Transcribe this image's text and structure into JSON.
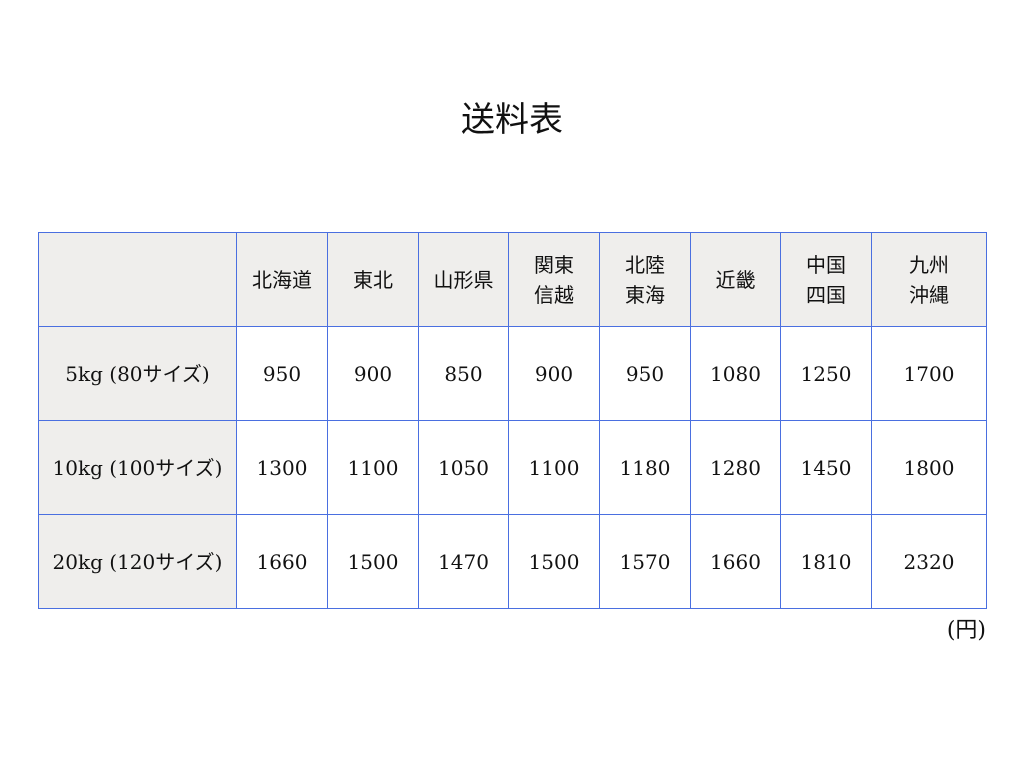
{
  "title": "送料表",
  "table": {
    "columns": [
      "",
      "北海道",
      "東北",
      "山形県",
      "関東\n信越",
      "北陸\n東海",
      "近畿",
      "中国\n四国",
      "九州\n沖縄"
    ],
    "rows": [
      {
        "label": "5kg (80サイズ)",
        "values": [
          "950",
          "900",
          "850",
          "900",
          "950",
          "1080",
          "1250",
          "1700"
        ]
      },
      {
        "label": "10kg (100サイズ)",
        "values": [
          "1300",
          "1100",
          "1050",
          "1100",
          "1180",
          "1280",
          "1450",
          "1800"
        ]
      },
      {
        "label": "20kg (120サイズ)",
        "values": [
          "1660",
          "1500",
          "1470",
          "1500",
          "1570",
          "1660",
          "1810",
          "2320"
        ]
      }
    ]
  },
  "unit": "(円)",
  "colors": {
    "border": "#4a6fe0",
    "header_bg": "#efeeec"
  }
}
